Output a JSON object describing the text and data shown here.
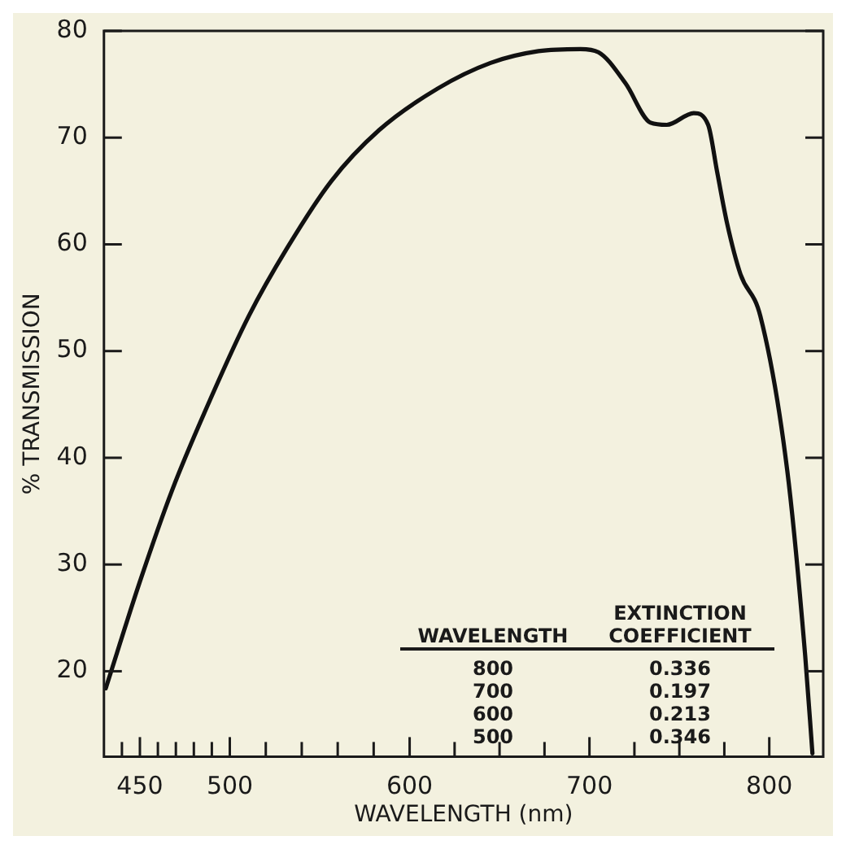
{
  "chart_data": {
    "type": "line",
    "xlabel": "WAVELENGTH (nm)",
    "ylabel": "% TRANSMISSION",
    "x": [
      431,
      450,
      468,
      490,
      510.6,
      531.7,
      556.3,
      583,
      615.6,
      645,
      671.6,
      695,
      705,
      720,
      734,
      743,
      758,
      766,
      771,
      776.5,
      784,
      795,
      810,
      820,
      824
    ],
    "series": [
      {
        "color": "#111111",
        "values": [
          18.4,
          28.4,
          37.0,
          45.8,
          53.3,
          59.6,
          65.9,
          70.7,
          74.6,
          77.0,
          78.1,
          78.3,
          78.0,
          75.1,
          71.4,
          71.2,
          72.3,
          71.2,
          66.8,
          62.0,
          57.2,
          53.3,
          38.8,
          21.4,
          12.3
        ]
      }
    ],
    "xlim": [
      430,
      830
    ],
    "xticks": [
      {
        "value": 440,
        "label": null
      },
      450,
      {
        "value": 460,
        "label": null
      },
      {
        "value": 470,
        "label": null
      },
      {
        "value": 480,
        "label": null
      },
      {
        "value": 490,
        "label": null
      },
      500,
      {
        "value": 520,
        "label": null
      },
      {
        "value": 540,
        "label": null
      },
      {
        "value": 560,
        "label": null
      },
      {
        "value": 580,
        "label": null
      },
      600,
      {
        "value": 625,
        "label": null
      },
      {
        "value": 650,
        "label": null
      },
      {
        "value": 675,
        "label": null
      },
      700,
      {
        "value": 725,
        "label": null
      },
      {
        "value": 750,
        "label": null
      },
      {
        "value": 775,
        "label": null
      },
      800
    ],
    "ylim": [
      12,
      80
    ],
    "yticks": [
      20,
      30,
      40,
      50,
      60,
      70,
      80
    ],
    "grid": false,
    "legend": false,
    "marker": "none",
    "line_style": "solid",
    "annotations": [
      "WAVELENGTH",
      "EXTINCTION COEFFICIENT",
      "800",
      "0.336",
      "700",
      "0.197",
      "600",
      "0.213",
      "500",
      "0.346"
    ]
  }
}
